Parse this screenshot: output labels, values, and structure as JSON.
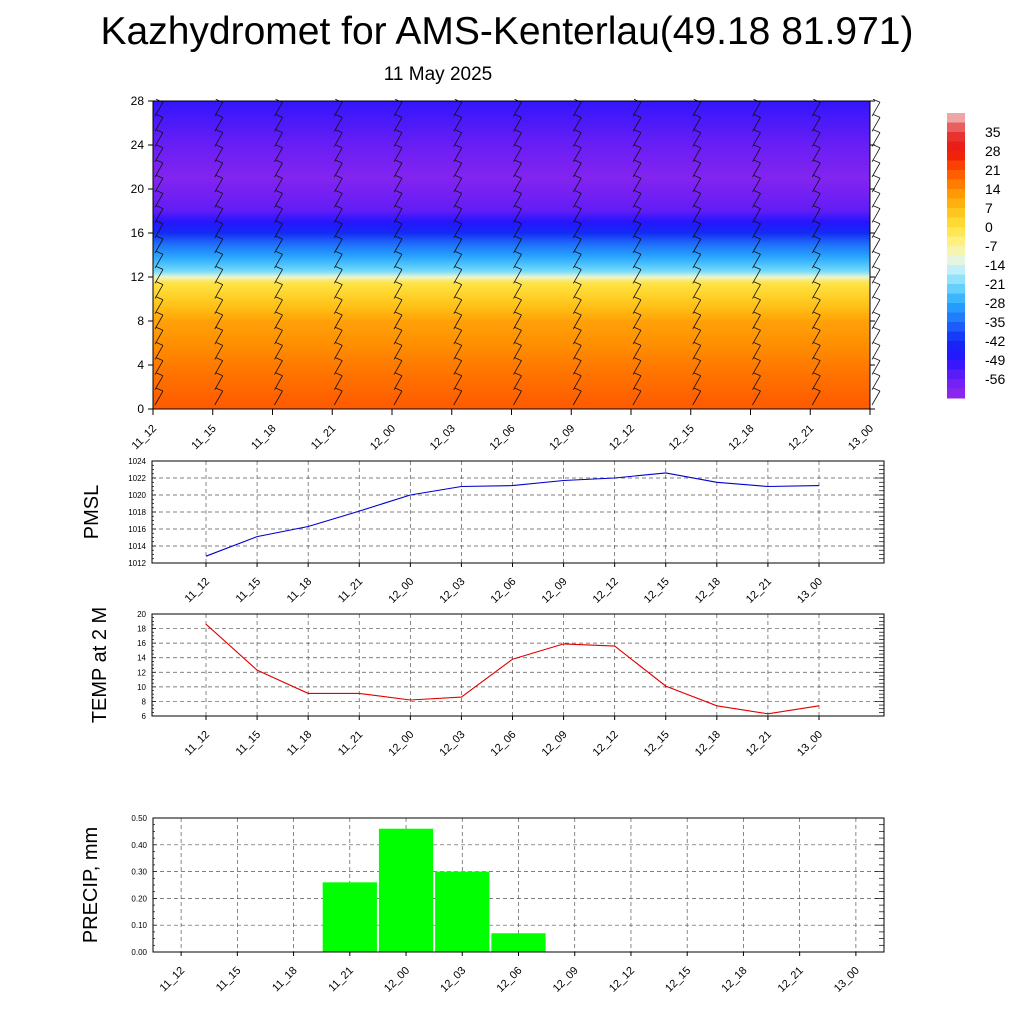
{
  "header": {
    "title": "Kazhydromet for AMS-Kenterlau(49.18 81.971)",
    "date": "11 May 2025"
  },
  "chart_data": [
    {
      "type": "heatmap",
      "x": [
        "11_12",
        "11_15",
        "11_18",
        "11_21",
        "12_00",
        "12_03",
        "12_06",
        "12_09",
        "12_12",
        "12_15",
        "12_18",
        "12_21",
        "13_00"
      ],
      "yticks": [
        0,
        4,
        8,
        12,
        16,
        20,
        24,
        28
      ],
      "ylim": [
        0,
        28
      ],
      "colorbar_ticks": [
        35,
        28,
        21,
        14,
        7,
        0,
        -7,
        -14,
        -21,
        -28,
        -35,
        -42,
        -49,
        -56
      ],
      "colorbar_range": [
        -63,
        42
      ],
      "temperature_profile": [
        {
          "level": 0,
          "value": 20
        },
        {
          "level": 4,
          "value": 16
        },
        {
          "level": 8,
          "value": 11
        },
        {
          "level": 11.5,
          "value": -1
        },
        {
          "level": 12.5,
          "value": -21
        },
        {
          "level": 15,
          "value": -35
        },
        {
          "level": 18,
          "value": -55
        },
        {
          "level": 21,
          "value": -60
        },
        {
          "level": 24,
          "value": -56
        },
        {
          "level": 28,
          "value": -50
        }
      ],
      "overlay": "wind barbs",
      "grid": false
    },
    {
      "type": "line",
      "ylabel": "PMSL",
      "x": [
        "11_12",
        "11_15",
        "11_18",
        "11_21",
        "12_00",
        "12_03",
        "12_06",
        "12_09",
        "12_12",
        "12_15",
        "12_18",
        "12_21",
        "13_00"
      ],
      "values": [
        1012.8,
        1015.1,
        1016.3,
        1018.1,
        1020.0,
        1021.0,
        1021.1,
        1021.7,
        1022.0,
        1022.6,
        1021.5,
        1021.0,
        1021.1
      ],
      "ylim": [
        1012,
        1024
      ],
      "yticks": [
        1012,
        1014,
        1016,
        1018,
        1020,
        1022,
        1024
      ],
      "color": "#0000cc",
      "grid": true
    },
    {
      "type": "line",
      "ylabel": "TEMP at 2 M",
      "x": [
        "11_12",
        "11_15",
        "11_18",
        "11_21",
        "12_00",
        "12_03",
        "12_06",
        "12_09",
        "12_12",
        "12_15",
        "12_18",
        "12_21",
        "13_00"
      ],
      "values": [
        18.6,
        12.3,
        9.1,
        9.1,
        8.2,
        8.6,
        13.8,
        15.9,
        15.6,
        10.1,
        7.4,
        6.3,
        7.4
      ],
      "ylim": [
        6,
        20
      ],
      "yticks": [
        6,
        8,
        10,
        12,
        14,
        16,
        18,
        20
      ],
      "color": "#e00000",
      "grid": true
    },
    {
      "type": "bar",
      "ylabel": "PRECIP, mm",
      "categories": [
        "11_12",
        "11_15",
        "11_18",
        "11_21",
        "12_00",
        "12_03",
        "12_06",
        "12_09",
        "12_12",
        "12_15",
        "12_18",
        "12_21",
        "13_00"
      ],
      "values": [
        0,
        0,
        0,
        0.26,
        0.46,
        0.3,
        0.07,
        0,
        0,
        0,
        0,
        0,
        0
      ],
      "ylim": [
        0,
        0.5
      ],
      "yticks": [
        "0.00",
        "0.10",
        "0.20",
        "0.30",
        "0.40",
        "0.50"
      ],
      "color": "#00ff00",
      "grid": true
    }
  ]
}
